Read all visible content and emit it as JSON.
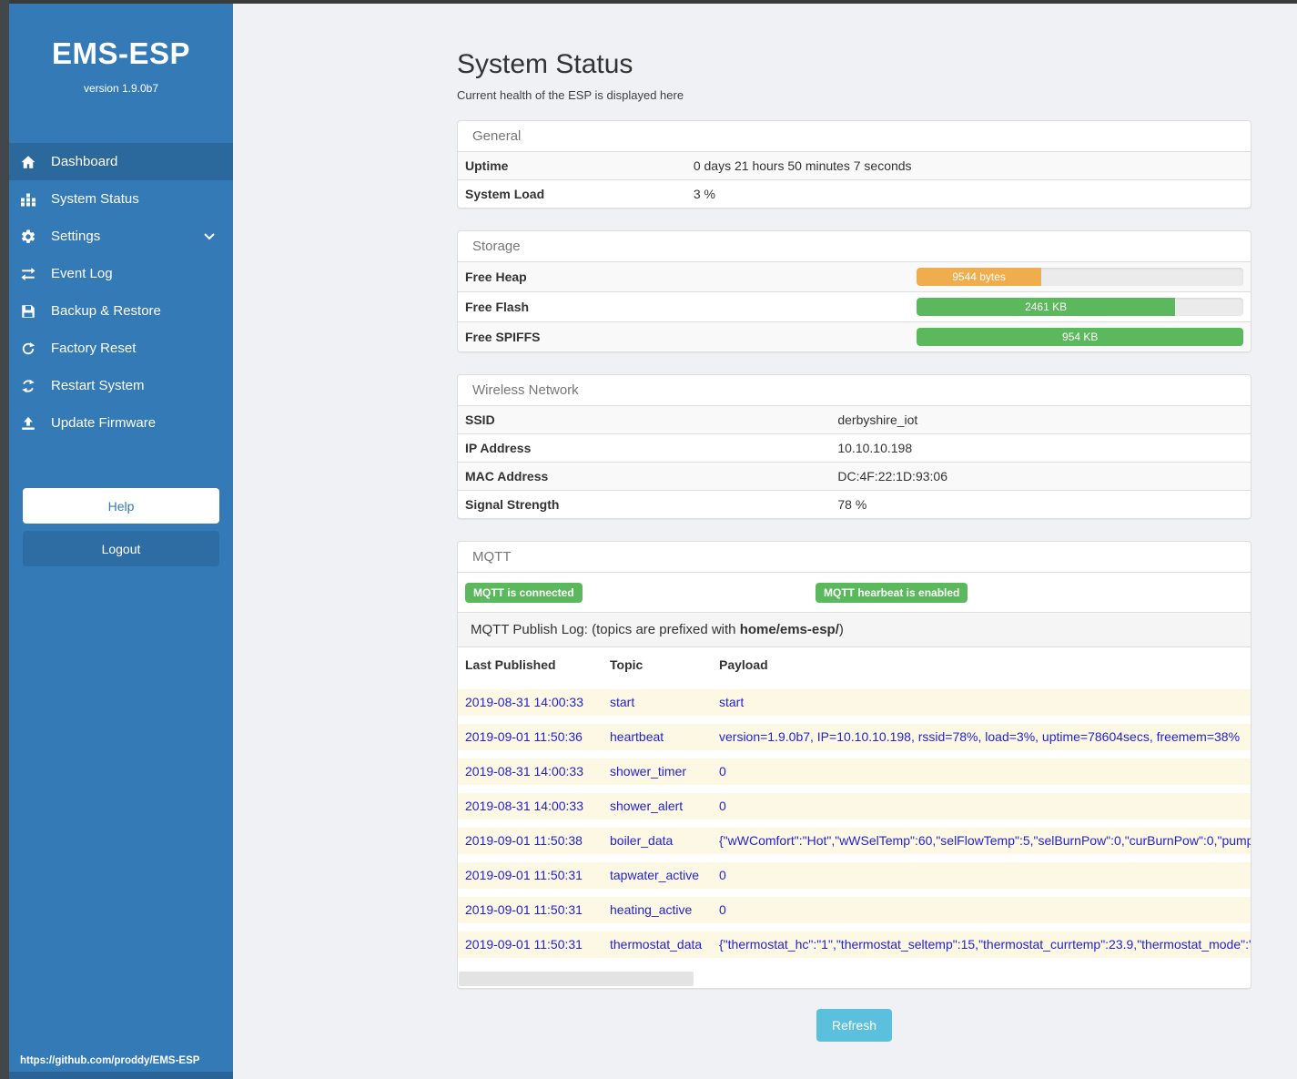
{
  "sidebar": {
    "app_title": "EMS-ESP",
    "version": "version 1.9.0b7",
    "items": [
      {
        "label": "Dashboard"
      },
      {
        "label": "System Status"
      },
      {
        "label": "Settings"
      },
      {
        "label": "Event Log"
      },
      {
        "label": "Backup & Restore"
      },
      {
        "label": "Factory Reset"
      },
      {
        "label": "Restart System"
      },
      {
        "label": "Update Firmware"
      }
    ],
    "help_label": "Help",
    "logout_label": "Logout",
    "footer_url": "https://github.com/proddy/EMS-ESP"
  },
  "page": {
    "title": "System Status",
    "subtitle": "Current health of the ESP is displayed here",
    "refresh_label": "Refresh"
  },
  "general": {
    "header": "General",
    "rows": [
      {
        "label": "Uptime",
        "value": "0 days 21 hours 50 minutes 7 seconds"
      },
      {
        "label": "System Load",
        "value": "3 %"
      }
    ]
  },
  "storage": {
    "header": "Storage",
    "rows": [
      {
        "label": "Free Heap",
        "value": "9544 bytes",
        "percent": 38,
        "color": "#f0ad4e"
      },
      {
        "label": "Free Flash",
        "value": "2461 KB",
        "percent": 79,
        "color": "#5cb85c"
      },
      {
        "label": "Free SPIFFS",
        "value": "954 KB",
        "percent": 100,
        "color": "#5cb85c"
      }
    ]
  },
  "wireless": {
    "header": "Wireless Network",
    "rows": [
      {
        "label": "SSID",
        "value": "derbyshire_iot"
      },
      {
        "label": "IP Address",
        "value": "10.10.10.198"
      },
      {
        "label": "MAC Address",
        "value": "DC:4F:22:1D:93:06"
      },
      {
        "label": "Signal Strength",
        "value": "78 %"
      }
    ]
  },
  "mqtt": {
    "header": "MQTT",
    "badge_connected": "MQTT is connected",
    "badge_heartbeat": "MQTT hearbeat is enabled",
    "publog_text": "MQTT Publish Log: (topics are prefixed with ",
    "publog_bold": "home/ems-esp/",
    "publog_suffix": ")",
    "columns": [
      "Last Published",
      "Topic",
      "Payload"
    ],
    "rows": [
      {
        "published": "2019-08-31 14:00:33",
        "topic": "start",
        "payload": "start"
      },
      {
        "published": "2019-09-01 11:50:36",
        "topic": "heartbeat",
        "payload": "version=1.9.0b7, IP=10.10.10.198, rssid=78%, load=3%, uptime=78604secs, freemem=38%"
      },
      {
        "published": "2019-08-31 14:00:33",
        "topic": "shower_timer",
        "payload": "0"
      },
      {
        "published": "2019-08-31 14:00:33",
        "topic": "shower_alert",
        "payload": "0"
      },
      {
        "published": "2019-09-01 11:50:38",
        "topic": "boiler_data",
        "payload": "{\"wWComfort\":\"Hot\",\"wWSelTemp\":60,\"selFlowTemp\":5,\"selBurnPow\":0,\"curBurnPow\":0,\"pump"
      },
      {
        "published": "2019-09-01 11:50:31",
        "topic": "tapwater_active",
        "payload": "0"
      },
      {
        "published": "2019-09-01 11:50:31",
        "topic": "heating_active",
        "payload": "0"
      },
      {
        "published": "2019-09-01 11:50:31",
        "topic": "thermostat_data",
        "payload": "{\"thermostat_hc\":\"1\",\"thermostat_seltemp\":15,\"thermostat_currtemp\":23.9,\"thermostat_mode\":\""
      }
    ]
  },
  "colors": {
    "sidebar": "#337ab7",
    "sidebar_active": "#2b689c",
    "badge_green": "#5cb85c",
    "heap_orange": "#f0ad4e",
    "bar_green": "#5cb85c",
    "refresh_blue": "#5bc0de",
    "log_text_blue": "#2323d3",
    "log_row_yellow": "#fcf8e3"
  }
}
